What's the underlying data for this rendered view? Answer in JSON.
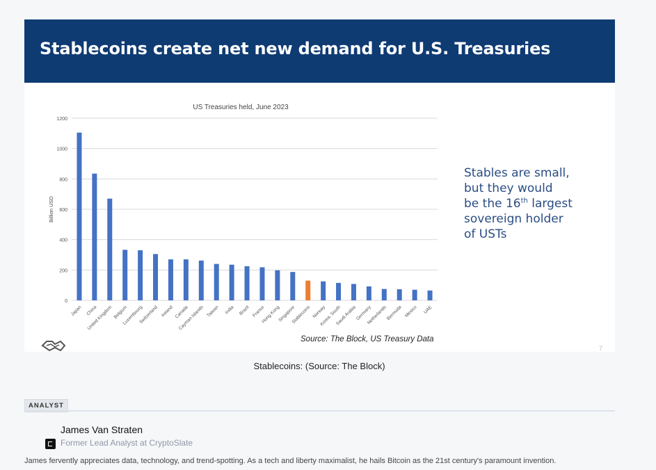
{
  "slide": {
    "title": "Stablecoins create net new demand for U.S. Treasuries",
    "callout_parts": [
      "Stables are small,",
      "but they would",
      "be the 16",
      "th",
      " largest",
      "sovereign holder",
      "of USTs"
    ],
    "source": "Source: The Block, US Treasury Data",
    "page_number": "7"
  },
  "chart_data": {
    "type": "bar",
    "title": "US Treasuries held, June 2023",
    "xlabel": "",
    "ylabel": "Billion USD",
    "ylim": [
      0,
      1200
    ],
    "yticks": [
      0,
      200,
      400,
      600,
      800,
      1000,
      1200
    ],
    "categories": [
      "Japan",
      "China",
      "United Kingdom",
      "Belgium",
      "Luxembourg",
      "Switzerland",
      "Ireland",
      "Canada",
      "Cayman Islands",
      "Taiwan",
      "India",
      "Brazil",
      "France",
      "Hong Kong",
      "Singapore",
      "Stablecoins",
      "Norway",
      "Korea, South",
      "Saudi Arabia",
      "Germany",
      "Netherlands",
      "Bermuda",
      "Mexico",
      "UAE"
    ],
    "values": [
      1105,
      835,
      670,
      333,
      330,
      305,
      270,
      270,
      262,
      240,
      235,
      225,
      218,
      198,
      187,
      130,
      125,
      115,
      108,
      92,
      75,
      73,
      70,
      65
    ],
    "highlight": "Stablecoins",
    "colors": {
      "bar": "#4472c4",
      "highlight": "#ed7d31",
      "grid": "#d9d9d9"
    }
  },
  "caption": "Stablecoins: (Source: The Block)",
  "analyst": {
    "badge": "ANALYST",
    "name": "James Van Straten",
    "role": "Former Lead Analyst at CryptoSlate",
    "bio": "James fervently appreciates data, technology, and trend-spotting. As a tech and liberty maximalist, he hails Bitcoin as the 21st century's paramount invention."
  }
}
